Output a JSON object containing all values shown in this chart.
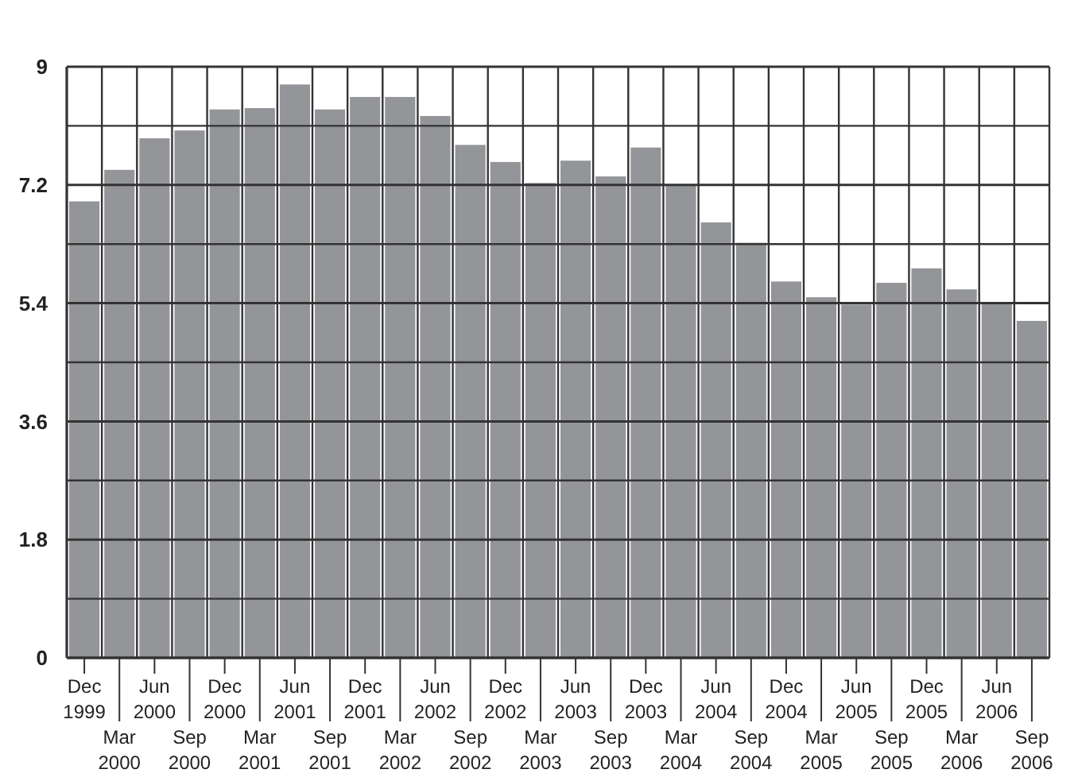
{
  "chart_data": {
    "type": "bar",
    "categories": [
      "Dec 1999",
      "Mar 2000",
      "Jun 2000",
      "Sep 2000",
      "Dec 2000",
      "Mar 2001",
      "Jun 2001",
      "Sep 2001",
      "Dec 2001",
      "Mar 2002",
      "Jun 2002",
      "Sep 2002",
      "Dec 2002",
      "Mar 2003",
      "Jun 2003",
      "Sep 2003",
      "Dec 2003",
      "Mar 2004",
      "Jun 2004",
      "Sep 2004",
      "Dec 2004",
      "Mar 2005",
      "Jun 2005",
      "Sep 2005",
      "Dec 2005",
      "Mar 2006",
      "Jun 2006",
      "Sep 2006"
    ],
    "series": [
      {
        "color": "#939598",
        "values": [
          6.95,
          7.43,
          7.91,
          8.03,
          8.35,
          8.37,
          8.73,
          8.35,
          8.54,
          8.54,
          8.25,
          7.81,
          7.55,
          7.23,
          7.57,
          7.33,
          7.77,
          7.21,
          6.63,
          6.32,
          5.73,
          5.49,
          5.38,
          5.71,
          5.93,
          5.61,
          5.4,
          5.13
        ]
      }
    ],
    "ylim": [
      0,
      9
    ],
    "yticks": [
      0,
      {
        "value": 0.9,
        "label": null
      },
      1.8,
      {
        "value": 2.7,
        "label": null
      },
      3.6,
      {
        "value": 4.5,
        "label": null
      },
      5.4,
      {
        "value": 6.3,
        "label": null
      },
      7.2,
      {
        "value": 8.1,
        "label": null
      },
      9
    ],
    "grid": true
  }
}
